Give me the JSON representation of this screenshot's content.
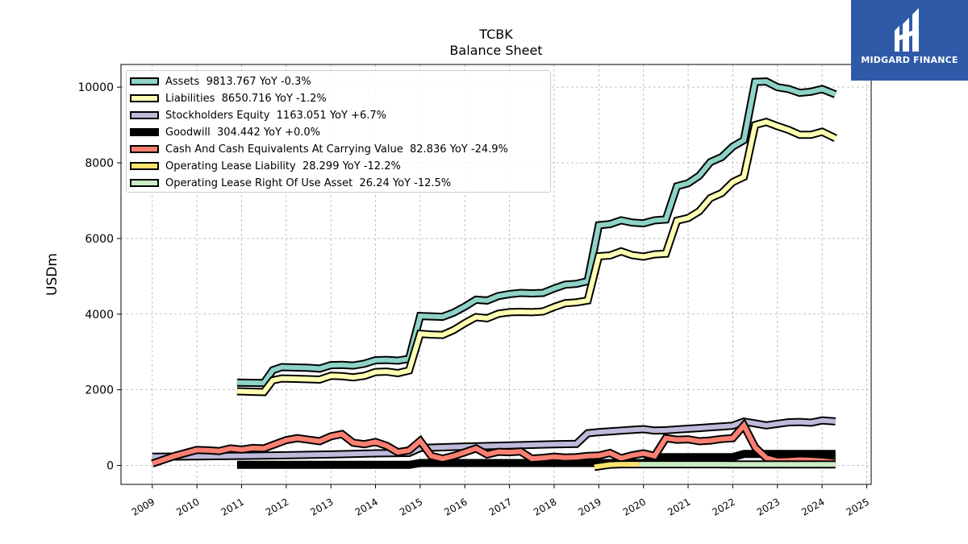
{
  "chart_data": {
    "type": "line",
    "title": "TCBK",
    "subtitle": "Balance  Sheet",
    "ylabel": "USDm",
    "xlabel": "",
    "xlim": [
      2008.3,
      2025.1
    ],
    "ylim": [
      -500,
      10600
    ],
    "x_ticks": [
      "2009",
      "2010",
      "2011",
      "2012",
      "2013",
      "2014",
      "2015",
      "2016",
      "2017",
      "2018",
      "2019",
      "2020",
      "2021",
      "2022",
      "2023",
      "2024",
      "2025"
    ],
    "y_ticks": [
      "0",
      "2000",
      "4000",
      "6000",
      "8000",
      "10000"
    ],
    "grid": true,
    "legend_position": "top-left",
    "series": [
      {
        "name": "Assets",
        "legend": "Assets  9813.767 YoY -0.3%",
        "color": "#8dd3c7",
        "x": [
          2010.9,
          2011.2,
          2011.5,
          2011.7,
          2011.9,
          2012.2,
          2012.5,
          2012.75,
          2013.0,
          2013.25,
          2013.5,
          2013.75,
          2014.0,
          2014.25,
          2014.5,
          2014.75,
          2015.0,
          2015.25,
          2015.5,
          2015.75,
          2016.0,
          2016.25,
          2016.5,
          2016.75,
          2017.0,
          2017.25,
          2017.5,
          2017.75,
          2018.0,
          2018.25,
          2018.5,
          2018.75,
          2019.0,
          2019.25,
          2019.5,
          2019.75,
          2020.0,
          2020.25,
          2020.5,
          2020.75,
          2021.0,
          2021.25,
          2021.5,
          2021.75,
          2022.0,
          2022.25,
          2022.5,
          2022.75,
          2023.0,
          2023.25,
          2023.5,
          2023.75,
          2024.0,
          2024.3
        ],
        "y": [
          2190,
          2185,
          2180,
          2520,
          2600,
          2590,
          2580,
          2560,
          2650,
          2660,
          2640,
          2690,
          2780,
          2790,
          2770,
          2820,
          3950,
          3940,
          3930,
          4040,
          4200,
          4380,
          4360,
          4480,
          4530,
          4560,
          4550,
          4560,
          4680,
          4780,
          4800,
          4870,
          6350,
          6380,
          6480,
          6420,
          6400,
          6480,
          6500,
          7380,
          7460,
          7660,
          8020,
          8150,
          8430,
          8600,
          10140,
          10150,
          10000,
          9950,
          9850,
          9880,
          9950,
          9810
        ]
      },
      {
        "name": "Liabilities",
        "legend": "Liabilities  8650.716 YoY -1.2%",
        "color": "#ffffb3",
        "x": [
          2010.9,
          2011.2,
          2011.5,
          2011.7,
          2011.9,
          2012.2,
          2012.5,
          2012.75,
          2013.0,
          2013.25,
          2013.5,
          2013.75,
          2014.0,
          2014.25,
          2014.5,
          2014.75,
          2015.0,
          2015.25,
          2015.5,
          2015.75,
          2016.0,
          2016.25,
          2016.5,
          2016.75,
          2017.0,
          2017.25,
          2017.5,
          2017.75,
          2018.0,
          2018.25,
          2018.5,
          2018.75,
          2019.0,
          2019.25,
          2019.5,
          2019.75,
          2020.0,
          2020.25,
          2020.5,
          2020.75,
          2021.0,
          2021.25,
          2021.5,
          2021.75,
          2022.0,
          2022.25,
          2022.5,
          2022.75,
          2023.0,
          2023.25,
          2023.5,
          2023.75,
          2024.0,
          2024.3
        ],
        "y": [
          1960,
          1950,
          1940,
          2250,
          2300,
          2290,
          2280,
          2270,
          2370,
          2360,
          2330,
          2370,
          2470,
          2480,
          2440,
          2510,
          3480,
          3460,
          3450,
          3580,
          3760,
          3920,
          3890,
          4010,
          4050,
          4060,
          4050,
          4070,
          4190,
          4290,
          4310,
          4360,
          5530,
          5550,
          5660,
          5560,
          5520,
          5580,
          5600,
          6470,
          6540,
          6720,
          7070,
          7200,
          7490,
          7630,
          9000,
          9080,
          8970,
          8870,
          8740,
          8740,
          8820,
          8650
        ]
      },
      {
        "name": "Stockholders Equity",
        "legend": "Stockholders Equity  1163.051 YoY +6.7%",
        "color": "#bebada",
        "x": [
          2009.0,
          2010.0,
          2011.0,
          2012.0,
          2013.0,
          2014.0,
          2014.75,
          2015.0,
          2016.0,
          2017.0,
          2018.0,
          2018.5,
          2018.75,
          2019.0,
          2019.25,
          2019.5,
          2019.75,
          2020.0,
          2020.25,
          2020.5,
          2020.75,
          2021.0,
          2021.25,
          2021.5,
          2021.75,
          2022.0,
          2022.25,
          2022.5,
          2022.75,
          2023.0,
          2023.25,
          2023.5,
          2023.75,
          2024.0,
          2024.3
        ],
        "y": [
          230,
          240,
          255,
          270,
          290,
          320,
          330,
          460,
          500,
          530,
          560,
          570,
          850,
          880,
          900,
          920,
          940,
          960,
          920,
          930,
          950,
          970,
          990,
          1010,
          1030,
          1050,
          1160,
          1110,
          1060,
          1100,
          1140,
          1150,
          1130,
          1190,
          1163
        ]
      },
      {
        "name": "Goodwill",
        "legend": "Goodwill  304.442 YoY +0.0%",
        "color": "#000000",
        "x": [
          2010.9,
          2014.75,
          2015.0,
          2018.5,
          2018.75,
          2020.0,
          2020.25,
          2022.0,
          2022.25,
          2024.3
        ],
        "y": [
          15,
          15,
          64,
          64,
          64,
          64,
          221,
          221,
          304,
          304
        ]
      },
      {
        "name": "Cash And Cash Equivalents At Carrying Value",
        "legend": "Cash And Cash Equivalents At Carrying Value  82.836 YoY -24.9%",
        "color": "#fb8072",
        "x": [
          2009.0,
          2009.25,
          2009.5,
          2009.75,
          2010.0,
          2010.25,
          2010.5,
          2010.75,
          2011.0,
          2011.25,
          2011.5,
          2011.75,
          2012.0,
          2012.25,
          2012.5,
          2012.75,
          2013.0,
          2013.25,
          2013.5,
          2013.75,
          2014.0,
          2014.25,
          2014.5,
          2014.75,
          2015.0,
          2015.25,
          2015.5,
          2015.75,
          2016.0,
          2016.25,
          2016.5,
          2016.75,
          2017.0,
          2017.25,
          2017.5,
          2017.75,
          2018.0,
          2018.25,
          2018.5,
          2018.75,
          2019.0,
          2019.25,
          2019.5,
          2019.75,
          2020.0,
          2020.25,
          2020.5,
          2020.75,
          2021.0,
          2021.25,
          2021.5,
          2021.75,
          2022.0,
          2022.25,
          2022.5,
          2022.75,
          2023.0,
          2023.25,
          2023.5,
          2023.75,
          2024.0,
          2024.3
        ],
        "y": [
          50,
          150,
          250,
          330,
          410,
          400,
          380,
          450,
          420,
          460,
          450,
          560,
          670,
          720,
          680,
          640,
          770,
          830,
          600,
          560,
          620,
          520,
          350,
          400,
          650,
          250,
          180,
          250,
          350,
          450,
          290,
          360,
          350,
          370,
          180,
          200,
          230,
          210,
          220,
          250,
          260,
          330,
          190,
          270,
          320,
          250,
          720,
          680,
          690,
          640,
          660,
          700,
          720,
          1060,
          480,
          200,
          120,
          130,
          150,
          140,
          120,
          83
        ]
      },
      {
        "name": "Operating Lease Liability",
        "legend": "Operating Lease Liability  28.299 YoY -12.2%",
        "color": "#fee36f",
        "x": [
          2018.9,
          2019.25,
          2019.5,
          2019.9
        ],
        "y": [
          -40,
          20,
          30,
          30
        ]
      },
      {
        "name": "Operating Lease Right Of Use Asset",
        "legend": "Operating Lease Right Of Use Asset  26.24 YoY -12.5%",
        "color": "#ccebc5",
        "x": [
          2019.9,
          2022.0,
          2024.3
        ],
        "y": [
          30,
          28,
          26
        ]
      }
    ]
  },
  "logo": {
    "text": "MIDGARD FINANCE",
    "bg_color": "#2f5aa8"
  }
}
